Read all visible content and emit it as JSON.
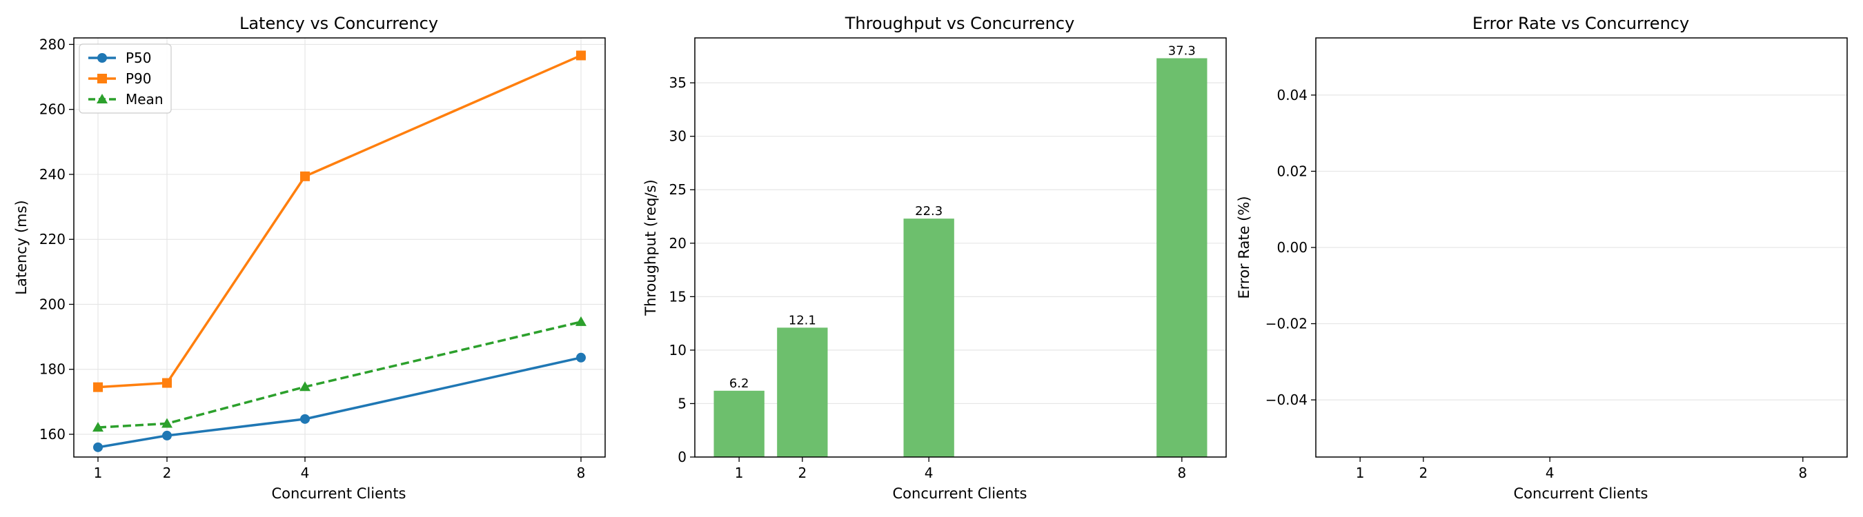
{
  "chart_data": [
    {
      "type": "line",
      "title": "Latency vs Concurrency",
      "xlabel": "Concurrent Clients",
      "ylabel": "Latency (ms)",
      "x": [
        1,
        2,
        4,
        8
      ],
      "xticks": [
        "1",
        "2",
        "4",
        "8"
      ],
      "xlim": [
        0.65,
        8.35
      ],
      "ylim": [
        153,
        282
      ],
      "yticks": [
        160,
        180,
        200,
        220,
        240,
        260,
        280
      ],
      "grid": true,
      "legend_position": "top-left",
      "series": [
        {
          "name": "P50",
          "values": [
            156.0,
            159.6,
            164.7,
            183.6
          ],
          "color": "#1f77b4",
          "marker": "circle",
          "dash": false
        },
        {
          "name": "P90",
          "values": [
            174.5,
            175.8,
            239.4,
            276.6
          ],
          "color": "#ff7f0e",
          "marker": "square",
          "dash": false
        },
        {
          "name": "Mean",
          "values": [
            162.1,
            163.3,
            174.6,
            194.6
          ],
          "color": "#2ca02c",
          "marker": "triangle",
          "dash": true
        }
      ]
    },
    {
      "type": "bar",
      "title": "Throughput vs Concurrency",
      "xlabel": "Concurrent Clients",
      "ylabel": "Throughput (req/s)",
      "x": [
        1,
        2,
        4,
        8
      ],
      "xticks": [
        "1",
        "2",
        "4",
        "8"
      ],
      "xlim": [
        0.3,
        8.7
      ],
      "bar_width": 0.8,
      "ylim": [
        0,
        39.2
      ],
      "yticks": [
        0,
        5,
        10,
        15,
        20,
        25,
        30,
        35
      ],
      "values": [
        6.2,
        12.1,
        22.3,
        37.3
      ],
      "labels": [
        "6.2",
        "12.1",
        "22.3",
        "37.3"
      ],
      "color": "#6dbf6d",
      "grid": true
    },
    {
      "type": "bar",
      "title": "Error Rate vs Concurrency",
      "xlabel": "Concurrent Clients",
      "ylabel": "Error Rate (%)",
      "x": [
        1,
        2,
        4,
        8
      ],
      "xticks": [
        "1",
        "2",
        "4",
        "8"
      ],
      "xlim": [
        0.3,
        8.7
      ],
      "ylim": [
        -0.055,
        0.055
      ],
      "yticks": [
        -0.04,
        -0.02,
        0.0,
        0.02,
        0.04
      ],
      "ytick_labels": [
        "−0.04",
        "−0.02",
        "0.00",
        "0.02",
        "0.04"
      ],
      "values": [
        0,
        0,
        0,
        0
      ],
      "grid": true
    }
  ]
}
